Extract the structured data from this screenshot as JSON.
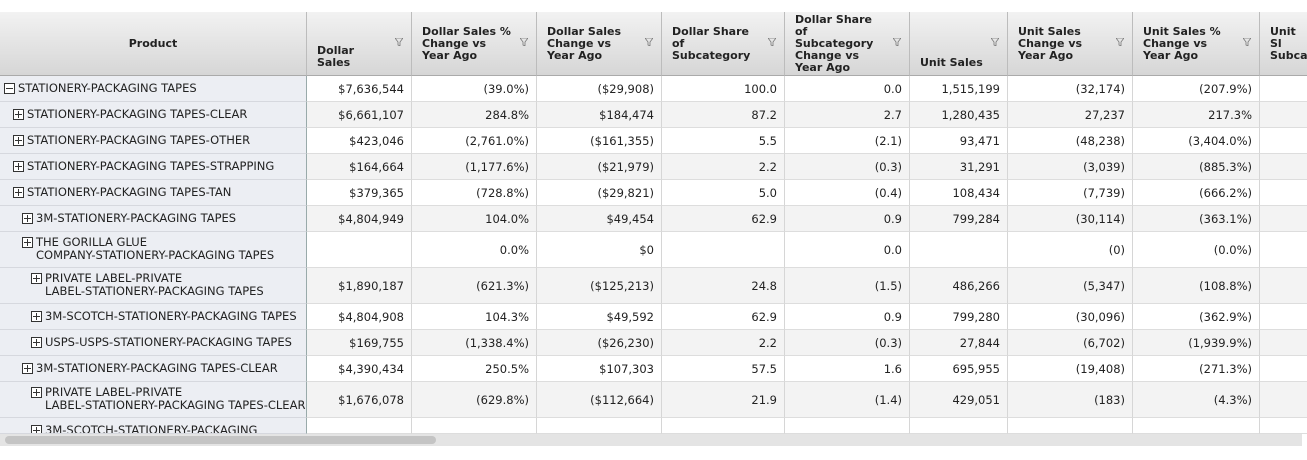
{
  "table": {
    "columns": [
      "Product",
      "Dollar Sales",
      "Dollar Sales % Change vs Year Ago",
      "Dollar Sales Change vs Year Ago",
      "Dollar Share of Subcategory",
      "Dollar Share of Subcategory Change vs Year Ago",
      "Unit Sales",
      "Unit Sales Change vs Year Ago",
      "Unit Sales % Change vs Year Ago",
      "Unit Sl Subca"
    ],
    "rows": [
      {
        "product": [
          "STATIONERY-PACKAGING TAPES"
        ],
        "level": 0,
        "cells": [
          "$7,636,544",
          "(39.0%)",
          "($29,908)",
          "100.0",
          "0.0",
          "1,515,199",
          "(32,174)",
          "(207.9%)"
        ]
      },
      {
        "product": [
          "STATIONERY-PACKAGING TAPES-CLEAR"
        ],
        "level": 1,
        "cells": [
          "$6,661,107",
          "284.8%",
          "$184,474",
          "87.2",
          "2.7",
          "1,280,435",
          "27,237",
          "217.3%"
        ]
      },
      {
        "product": [
          "STATIONERY-PACKAGING TAPES-OTHER"
        ],
        "level": 1,
        "cells": [
          "$423,046",
          "(2,761.0%)",
          "($161,355)",
          "5.5",
          "(2.1)",
          "93,471",
          "(48,238)",
          "(3,404.0%)"
        ]
      },
      {
        "product": [
          "STATIONERY-PACKAGING TAPES-STRAPPING"
        ],
        "level": 1,
        "cells": [
          "$164,664",
          "(1,177.6%)",
          "($21,979)",
          "2.2",
          "(0.3)",
          "31,291",
          "(3,039)",
          "(885.3%)"
        ]
      },
      {
        "product": [
          "STATIONERY-PACKAGING TAPES-TAN"
        ],
        "level": 1,
        "cells": [
          "$379,365",
          "(728.8%)",
          "($29,821)",
          "5.0",
          "(0.4)",
          "108,434",
          "(7,739)",
          "(666.2%)"
        ]
      },
      {
        "product": [
          "3M-STATIONERY-PACKAGING TAPES"
        ],
        "level": 2,
        "cells": [
          "$4,804,949",
          "104.0%",
          "$49,454",
          "62.9",
          "0.9",
          "799,284",
          "(30,114)",
          "(363.1%)"
        ]
      },
      {
        "product": [
          "THE GORILLA GLUE",
          "COMPANY-STATIONERY-PACKAGING TAPES"
        ],
        "level": 2,
        "cells": [
          null,
          "0.0%",
          "$0",
          null,
          "0.0",
          null,
          "(0)",
          "(0.0%)"
        ]
      },
      {
        "product": [
          "PRIVATE LABEL-PRIVATE",
          "LABEL-STATIONERY-PACKAGING TAPES"
        ],
        "level": 3,
        "cells": [
          "$1,890,187",
          "(621.3%)",
          "($125,213)",
          "24.8",
          "(1.5)",
          "486,266",
          "(5,347)",
          "(108.8%)"
        ]
      },
      {
        "product": [
          "3M-SCOTCH-STATIONERY-PACKAGING TAPES"
        ],
        "level": 3,
        "cells": [
          "$4,804,908",
          "104.3%",
          "$49,592",
          "62.9",
          "0.9",
          "799,280",
          "(30,096)",
          "(362.9%)"
        ]
      },
      {
        "product": [
          "USPS-USPS-STATIONERY-PACKAGING TAPES"
        ],
        "level": 3,
        "cells": [
          "$169,755",
          "(1,338.4%)",
          "($26,230)",
          "2.2",
          "(0.3)",
          "27,844",
          "(6,702)",
          "(1,939.9%)"
        ]
      },
      {
        "product": [
          "3M-STATIONERY-PACKAGING TAPES-CLEAR"
        ],
        "level": 2,
        "cells": [
          "$4,390,434",
          "250.5%",
          "$107,303",
          "57.5",
          "1.6",
          "695,955",
          "(19,408)",
          "(271.3%)"
        ]
      },
      {
        "product": [
          "PRIVATE LABEL-PRIVATE",
          "LABEL-STATIONERY-PACKAGING TAPES-CLEAR"
        ],
        "level": 3,
        "cells": [
          "$1,676,078",
          "(629.8%)",
          "($112,664)",
          "21.9",
          "(1.4)",
          "429,051",
          "(183)",
          "(4.3%)"
        ]
      },
      {
        "product": [
          "3M-SCOTCH-STATIONERY-PACKAGING"
        ],
        "level": 3,
        "cells": [
          null,
          null,
          null,
          null,
          null,
          null,
          null,
          null
        ]
      }
    ]
  }
}
